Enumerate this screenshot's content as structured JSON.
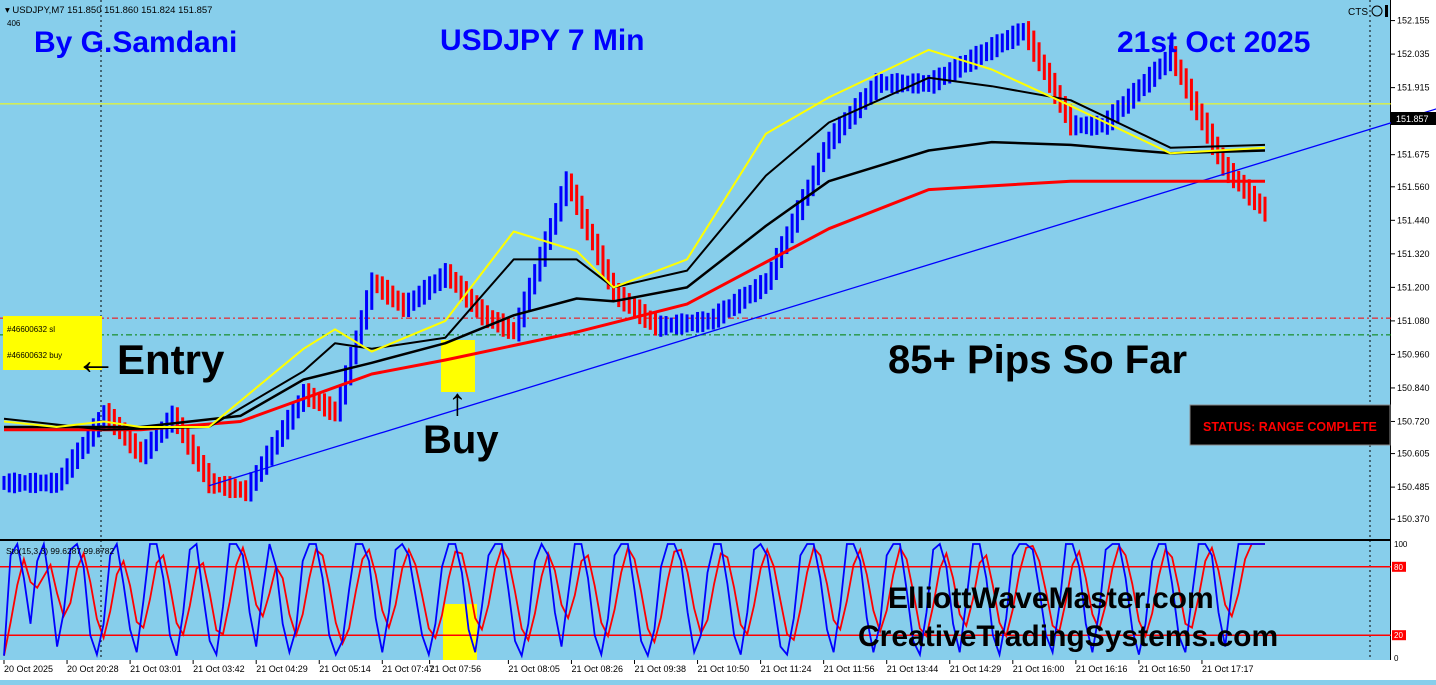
{
  "header": {
    "symbol_line": "USDJPY,M7  151.850 151.860 151.824 151.857",
    "small_number": "406",
    "cts_label": "CTS"
  },
  "overlay": {
    "author": "By G.Samdani",
    "chart_title": "USDJPY 7 Min",
    "date": "21st Oct 2025",
    "entry_label": "←Entry",
    "buy_label": "Buy",
    "buy_arrow": "↑",
    "pips_label": "85+ Pips So Far",
    "status": "STATUS: RANGE COMPLETE",
    "website1": "ElliottWaveMaster.com",
    "website2": "CreativeTradingSystems.com",
    "order_sl": "#46600632 sl",
    "order_buy": "#46600632 buy"
  },
  "indicator": {
    "label": "Sto(15,3,3) 99.6287 99.8782",
    "levels": [
      "100",
      "80",
      "20",
      "0"
    ]
  },
  "colors": {
    "background": "#87ceeb",
    "up_bar": "#0000ff",
    "down_bar": "#ff0000",
    "ma_fast": "#ffff00",
    "ma_mid": "#000000",
    "ma_slow": "#ff0000",
    "trendline": "#0000ff",
    "text_blue": "#0000ff",
    "highlight": "#ffff00"
  },
  "chart_data": {
    "type": "line",
    "title": "USDJPY 7 Min",
    "ylim": [
      150.31,
      152.2
    ],
    "y_ticks": [
      "152.155",
      "152.035",
      "151.915",
      "151.795",
      "151.675",
      "151.560",
      "151.440",
      "151.320",
      "151.200",
      "151.080",
      "150.960",
      "150.840",
      "150.720",
      "150.605",
      "150.485",
      "150.370"
    ],
    "current_price": "151.857",
    "x_ticks": [
      "20 Oct 2025",
      "20 Oct 20:28",
      "21 Oct 03:01",
      "21 Oct 03:42",
      "21 Oct 04:29",
      "21 Oct 05:14",
      "21 Oct 07:47",
      "21 Oct 07:56",
      "21 Oct 08:05",
      "21 Oct 08:26",
      "21 Oct 09:38",
      "21 Oct 10:50",
      "21 Oct 11:24",
      "21 Oct 11:56",
      "21 Oct 13:44",
      "21 Oct 14:29",
      "21 Oct 16:00",
      "21 Oct 16:16",
      "21 Oct 16:50",
      "21 Oct 17:17"
    ],
    "price_path": [
      [
        0,
        150.5
      ],
      [
        10,
        150.5
      ],
      [
        19,
        150.75
      ],
      [
        26,
        150.6
      ],
      [
        32,
        150.74
      ],
      [
        39,
        150.5
      ],
      [
        46,
        150.47
      ],
      [
        57,
        150.82
      ],
      [
        63,
        150.75
      ],
      [
        70,
        151.22
      ],
      [
        76,
        151.13
      ],
      [
        84,
        151.25
      ],
      [
        91,
        151.1
      ],
      [
        97,
        151.04
      ],
      [
        107,
        151.58
      ],
      [
        116,
        151.18
      ],
      [
        124,
        151.06
      ],
      [
        134,
        151.08
      ],
      [
        145,
        151.22
      ],
      [
        157,
        151.73
      ],
      [
        166,
        151.93
      ],
      [
        176,
        151.93
      ],
      [
        188,
        152.06
      ],
      [
        194,
        152.12
      ],
      [
        203,
        151.78
      ],
      [
        209,
        151.78
      ],
      [
        222,
        152.03
      ],
      [
        232,
        151.63
      ],
      [
        240,
        151.47
      ]
    ],
    "ma_fast": [
      [
        0,
        150.72
      ],
      [
        10,
        150.7
      ],
      [
        19,
        150.72
      ],
      [
        26,
        150.7
      ],
      [
        39,
        150.7
      ],
      [
        57,
        150.98
      ],
      [
        63,
        151.05
      ],
      [
        70,
        150.97
      ],
      [
        84,
        151.08
      ],
      [
        97,
        151.4
      ],
      [
        109,
        151.33
      ],
      [
        116,
        151.2
      ],
      [
        130,
        151.3
      ],
      [
        145,
        151.75
      ],
      [
        157,
        151.88
      ],
      [
        176,
        152.05
      ],
      [
        188,
        151.98
      ],
      [
        203,
        151.85
      ],
      [
        222,
        151.68
      ],
      [
        240,
        151.7
      ]
    ],
    "ma_mid": [
      [
        0,
        150.73
      ],
      [
        19,
        150.69
      ],
      [
        39,
        150.7
      ],
      [
        57,
        150.9
      ],
      [
        63,
        151.0
      ],
      [
        70,
        150.98
      ],
      [
        84,
        151.02
      ],
      [
        97,
        151.3
      ],
      [
        109,
        151.3
      ],
      [
        116,
        151.2
      ],
      [
        130,
        151.26
      ],
      [
        145,
        151.6
      ],
      [
        157,
        151.79
      ],
      [
        176,
        151.95
      ],
      [
        188,
        151.92
      ],
      [
        203,
        151.87
      ],
      [
        222,
        151.7
      ],
      [
        240,
        151.71
      ]
    ],
    "ma_slow": [
      [
        0,
        150.7
      ],
      [
        26,
        150.7
      ],
      [
        45,
        150.74
      ],
      [
        57,
        150.87
      ],
      [
        70,
        150.93
      ],
      [
        84,
        151.0
      ],
      [
        97,
        151.1
      ],
      [
        109,
        151.16
      ],
      [
        116,
        151.15
      ],
      [
        130,
        151.2
      ],
      [
        145,
        151.42
      ],
      [
        157,
        151.58
      ],
      [
        176,
        151.69
      ],
      [
        188,
        151.72
      ],
      [
        203,
        151.71
      ],
      [
        222,
        151.68
      ],
      [
        240,
        151.69
      ]
    ],
    "ma_baseline": [
      [
        0,
        150.69
      ],
      [
        26,
        150.69
      ],
      [
        45,
        150.72
      ],
      [
        70,
        150.89
      ],
      [
        84,
        150.94
      ],
      [
        109,
        151.04
      ],
      [
        130,
        151.14
      ],
      [
        157,
        151.41
      ],
      [
        176,
        151.55
      ],
      [
        203,
        151.58
      ],
      [
        240,
        151.58
      ]
    ],
    "trendline": [
      [
        39,
        150.49
      ],
      [
        260,
        151.78
      ]
    ],
    "h_lines": {
      "current": 151.857,
      "order_sl": 151.09,
      "order_buy": 151.03
    },
    "bar_count": 240,
    "x_tick_positions": [
      0,
      12,
      24,
      36,
      48,
      60,
      72,
      81,
      96,
      108,
      120,
      132,
      144,
      156,
      168,
      180,
      192,
      204,
      216,
      228
    ]
  },
  "stoch_data": {
    "ylim": [
      0,
      100
    ],
    "levels": [
      80,
      20
    ],
    "k": [
      2,
      90,
      100,
      70,
      30,
      85,
      100,
      60,
      10,
      40,
      95,
      100,
      80,
      20,
      3,
      30,
      90,
      100,
      65,
      25,
      5,
      50,
      100,
      100,
      70,
      20,
      2,
      40,
      95,
      100,
      55,
      15,
      3,
      45,
      100,
      100,
      90,
      40,
      10,
      60,
      100,
      80,
      30,
      5,
      25,
      85,
      100,
      100,
      70,
      20,
      3,
      15,
      60,
      100,
      100,
      85,
      35,
      5,
      40,
      95,
      100,
      90,
      55,
      20,
      3,
      30,
      80,
      100,
      100,
      75,
      25,
      5,
      45,
      90,
      100,
      100,
      60,
      15,
      2,
      30,
      85,
      100,
      90,
      40,
      10,
      55,
      100,
      100,
      70,
      20,
      3,
      35,
      90,
      100,
      100,
      60,
      15,
      2,
      25,
      80,
      100,
      100,
      85,
      40,
      5,
      20,
      75,
      100,
      100,
      65,
      20,
      3,
      40,
      95,
      100,
      90,
      50,
      10,
      3,
      35,
      90,
      100,
      100,
      70,
      25,
      5,
      45,
      100,
      100,
      85,
      35,
      5,
      30,
      90,
      100,
      100,
      60,
      15,
      3,
      40,
      95,
      100,
      80,
      30,
      5,
      50,
      100,
      100,
      70,
      20,
      3,
      35,
      90,
      100,
      100,
      95,
      60,
      20,
      5,
      45,
      100,
      100,
      80,
      30,
      5,
      40,
      95,
      100,
      100,
      70,
      25,
      3,
      30,
      85,
      100,
      100,
      65,
      20,
      5,
      55,
      100,
      100,
      90,
      40,
      10,
      60,
      100,
      100,
      100,
      100,
      100
    ]
  }
}
